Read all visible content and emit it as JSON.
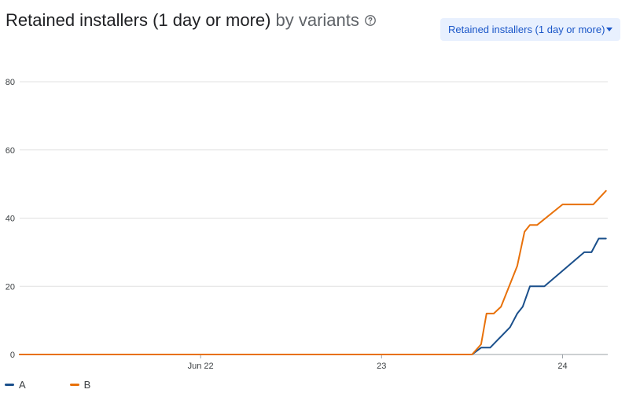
{
  "header": {
    "title": "Retained installers (1 day or more)",
    "subtitle": "by variants",
    "help_icon": "help-circle-icon"
  },
  "metric_selector": {
    "label": "Retained installers (1 day or more)",
    "icon": "dropdown-arrow-icon"
  },
  "colors": {
    "series_a": "#1a4f8b",
    "series_b": "#e8710a",
    "grid": "#e0e0e0",
    "text": "#3c4043"
  },
  "chart_data": {
    "type": "line",
    "title": "Retained installers (1 day or more)",
    "subtitle": "by variants",
    "xlabel": "",
    "ylabel": "",
    "x_axis": {
      "type": "time",
      "range": [
        21.0,
        24.25
      ],
      "ticks": [
        {
          "value": 22,
          "label": "Jun 22"
        },
        {
          "value": 23,
          "label": "23"
        },
        {
          "value": 24,
          "label": "24"
        }
      ]
    },
    "y_axis": {
      "range": [
        0,
        80
      ],
      "ticks": [
        0,
        20,
        40,
        60,
        80
      ]
    },
    "grid": true,
    "legend_position": "bottom-left",
    "series": [
      {
        "name": "A",
        "points": [
          [
            21.0,
            0
          ],
          [
            23.5,
            0
          ],
          [
            23.55,
            2
          ],
          [
            23.6,
            2
          ],
          [
            23.71,
            8
          ],
          [
            23.75,
            12
          ],
          [
            23.78,
            14
          ],
          [
            23.82,
            20
          ],
          [
            23.9,
            20
          ],
          [
            24.12,
            30
          ],
          [
            24.16,
            30
          ],
          [
            24.2,
            34
          ],
          [
            24.24,
            34
          ]
        ]
      },
      {
        "name": "B",
        "points": [
          [
            21.0,
            0
          ],
          [
            23.5,
            0
          ],
          [
            23.55,
            3
          ],
          [
            23.58,
            12
          ],
          [
            23.62,
            12
          ],
          [
            23.66,
            14
          ],
          [
            23.75,
            26
          ],
          [
            23.79,
            36
          ],
          [
            23.82,
            38
          ],
          [
            23.86,
            38
          ],
          [
            24.0,
            44
          ],
          [
            24.17,
            44
          ],
          [
            24.24,
            48
          ]
        ]
      }
    ]
  },
  "legend": {
    "items": [
      {
        "label": "A"
      },
      {
        "label": "B"
      }
    ]
  }
}
